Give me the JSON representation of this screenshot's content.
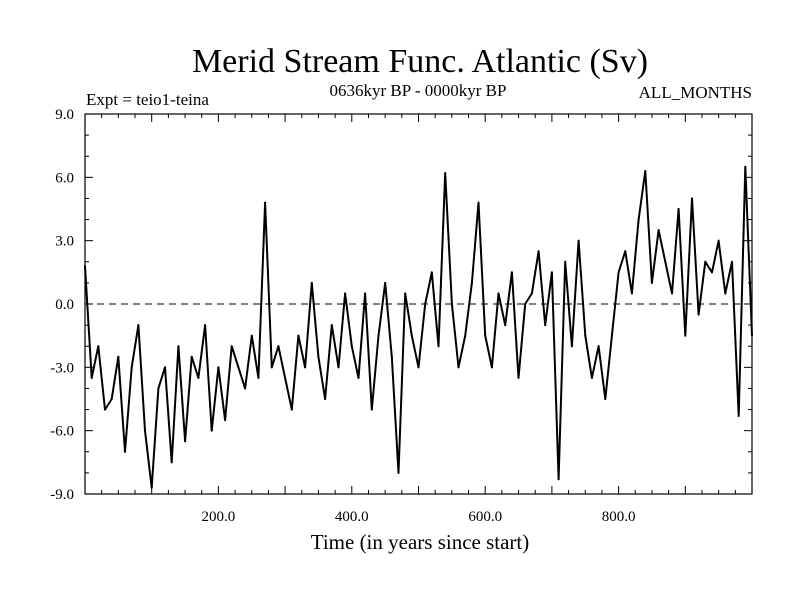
{
  "chart_data": {
    "type": "line",
    "title": "Merid Stream Func. Atlantic (Sv)",
    "subtitle_left": "Expt = teio1-teina",
    "subtitle_center": "0636kyr BP - 0000kyr BP",
    "subtitle_right": "ALL_MONTHS",
    "xlabel": "Time (in years since start)",
    "ylabel": "",
    "xlim": [
      0,
      1000
    ],
    "ylim": [
      -9,
      9
    ],
    "x_ticks": [
      200,
      400,
      600,
      800
    ],
    "x_tick_labels": [
      "200.0",
      "400.0",
      "600.0",
      "800.0"
    ],
    "y_ticks": [
      -9,
      -6,
      -3,
      0,
      3,
      6,
      9
    ],
    "y_tick_labels": [
      "-9.0",
      "-6.0",
      "-3.0",
      "0.0",
      "3.0",
      "6.0",
      "9.0"
    ],
    "reference_line": 0,
    "series": [
      {
        "name": "teio1-teina",
        "x": [
          0,
          10,
          20,
          30,
          40,
          50,
          60,
          70,
          80,
          90,
          100,
          110,
          120,
          130,
          140,
          150,
          160,
          170,
          180,
          190,
          200,
          210,
          220,
          230,
          240,
          250,
          260,
          270,
          280,
          290,
          300,
          310,
          320,
          330,
          340,
          350,
          360,
          370,
          380,
          390,
          400,
          410,
          420,
          430,
          440,
          450,
          460,
          470,
          480,
          490,
          500,
          510,
          520,
          530,
          540,
          550,
          560,
          570,
          580,
          590,
          600,
          610,
          620,
          630,
          640,
          650,
          660,
          670,
          680,
          690,
          700,
          710,
          720,
          730,
          740,
          750,
          760,
          770,
          780,
          790,
          800,
          810,
          820,
          830,
          840,
          850,
          860,
          870,
          880,
          890,
          900,
          910,
          920,
          930,
          940,
          950,
          960,
          970,
          980,
          990,
          1000
        ],
        "y": [
          1.8,
          -3.5,
          -2.0,
          -5.0,
          -4.5,
          -2.5,
          -7.0,
          -3.0,
          -1.0,
          -6.0,
          -8.7,
          -4.0,
          -3.0,
          -7.5,
          -2.0,
          -6.5,
          -2.5,
          -3.5,
          -1.0,
          -6.0,
          -3.0,
          -5.5,
          -2.0,
          -3.0,
          -4.0,
          -1.5,
          -3.5,
          4.8,
          -3.0,
          -2.0,
          -3.5,
          -5.0,
          -1.5,
          -3.0,
          1.0,
          -2.5,
          -4.5,
          -1.0,
          -3.0,
          0.5,
          -2.0,
          -3.5,
          0.5,
          -5.0,
          -1.5,
          1.0,
          -2.5,
          -8.0,
          0.5,
          -1.5,
          -3.0,
          0.0,
          1.5,
          -2.0,
          6.2,
          0.0,
          -3.0,
          -1.5,
          1.0,
          4.8,
          -1.5,
          -3.0,
          0.5,
          -1.0,
          1.5,
          -3.5,
          0.0,
          0.5,
          2.5,
          -1.0,
          1.5,
          -8.3,
          2.0,
          -2.0,
          3.0,
          -1.5,
          -3.5,
          -2.0,
          -4.5,
          -1.5,
          1.5,
          2.5,
          0.5,
          4.0,
          6.3,
          1.0,
          3.5,
          2.0,
          0.5,
          4.5,
          -1.5,
          5.0,
          -0.5,
          2.0,
          1.5,
          3.0,
          0.5,
          2.0,
          -5.3,
          6.5,
          -1.5
        ]
      }
    ]
  }
}
